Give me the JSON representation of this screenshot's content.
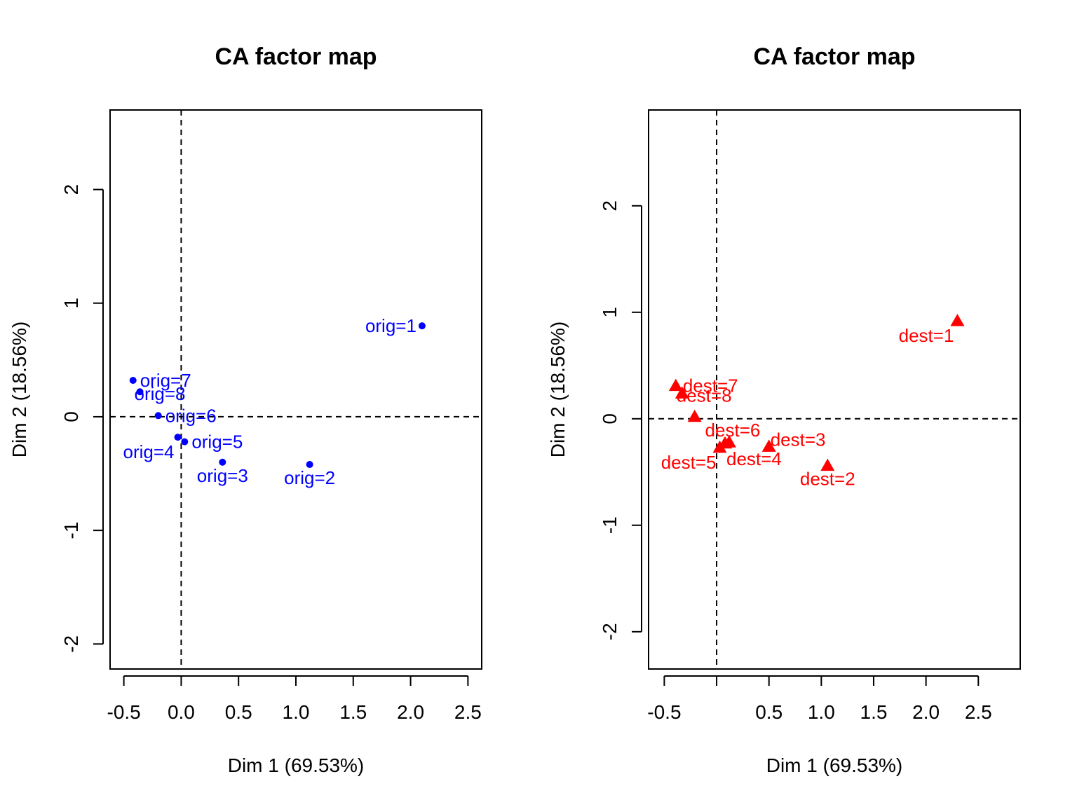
{
  "chart_data": [
    {
      "type": "scatter",
      "title": "CA factor map",
      "xlabel": "Dim 1 (69.53%)",
      "ylabel": "Dim 2 (18.56%)",
      "xlim": [
        -0.62,
        2.62
      ],
      "ylim": [
        -2.22,
        2.7
      ],
      "xticks": [
        -0.5,
        0.0,
        0.5,
        1.0,
        1.5,
        2.0,
        2.5
      ],
      "xtick_labels": [
        "-0.5",
        "0.0",
        "0.5",
        "1.0",
        "1.5",
        "2.0",
        "2.5"
      ],
      "yticks": [
        -2,
        -1,
        0,
        1,
        2
      ],
      "ytick_labels": [
        "-2",
        "-1",
        "0",
        "1",
        "2"
      ],
      "marker": "circle",
      "color": "#0000ff",
      "refline_x": 0,
      "refline_y": 0,
      "points": [
        {
          "label": "orig=1",
          "x": 2.1,
          "y": 0.8,
          "pos": "left"
        },
        {
          "label": "orig=2",
          "x": 1.12,
          "y": -0.42,
          "pos": "below"
        },
        {
          "label": "orig=3",
          "x": 0.36,
          "y": -0.4,
          "pos": "below"
        },
        {
          "label": "orig=4",
          "x": -0.03,
          "y": -0.18,
          "pos": "below-left"
        },
        {
          "label": "orig=5",
          "x": 0.03,
          "y": -0.22,
          "pos": "right"
        },
        {
          "label": "orig=6",
          "x": -0.2,
          "y": 0.01,
          "pos": "right"
        },
        {
          "label": "orig=7",
          "x": -0.42,
          "y": 0.32,
          "pos": "right"
        },
        {
          "label": "orig=8",
          "x": -0.36,
          "y": 0.22,
          "pos": "right-low"
        }
      ]
    },
    {
      "type": "scatter",
      "title": "CA factor map",
      "xlabel": "Dim 1 (69.53%)",
      "ylabel": "Dim 2 (18.56%)",
      "xlim": [
        -0.65,
        2.9
      ],
      "ylim": [
        -2.35,
        2.9
      ],
      "xticks": [
        -0.5,
        0.0,
        0.5,
        1.0,
        1.5,
        2.0,
        2.5
      ],
      "xtick_labels": [
        "-0.5",
        "",
        "0.5",
        "1.0",
        "1.5",
        "2.0",
        "2.5"
      ],
      "yticks": [
        -2,
        -1,
        0,
        1,
        2
      ],
      "ytick_labels": [
        "-2",
        "-1",
        "0",
        "1",
        "2"
      ],
      "marker": "triangle",
      "color": "#ff0000",
      "refline_x": 0,
      "refline_y": 0,
      "points": [
        {
          "label": "dest=1",
          "x": 2.3,
          "y": 0.92,
          "pos": "below-left"
        },
        {
          "label": "dest=2",
          "x": 1.06,
          "y": -0.44,
          "pos": "below"
        },
        {
          "label": "dest=3",
          "x": 0.5,
          "y": -0.26,
          "pos": "right-up"
        },
        {
          "label": "dest=4",
          "x": 0.08,
          "y": -0.23,
          "pos": "below-right"
        },
        {
          "label": "dest=5",
          "x": 0.03,
          "y": -0.27,
          "pos": "below-left"
        },
        {
          "label": "dest=6",
          "x": 0.12,
          "y": -0.22,
          "pos": "above"
        },
        {
          "label": "dest=7",
          "x": -0.39,
          "y": 0.31,
          "pos": "right"
        },
        {
          "label": "dest=8",
          "x": -0.33,
          "y": 0.24,
          "pos": "right-low"
        },
        {
          "label": "",
          "x": -0.21,
          "y": 0.02,
          "pos": "none"
        }
      ]
    }
  ]
}
